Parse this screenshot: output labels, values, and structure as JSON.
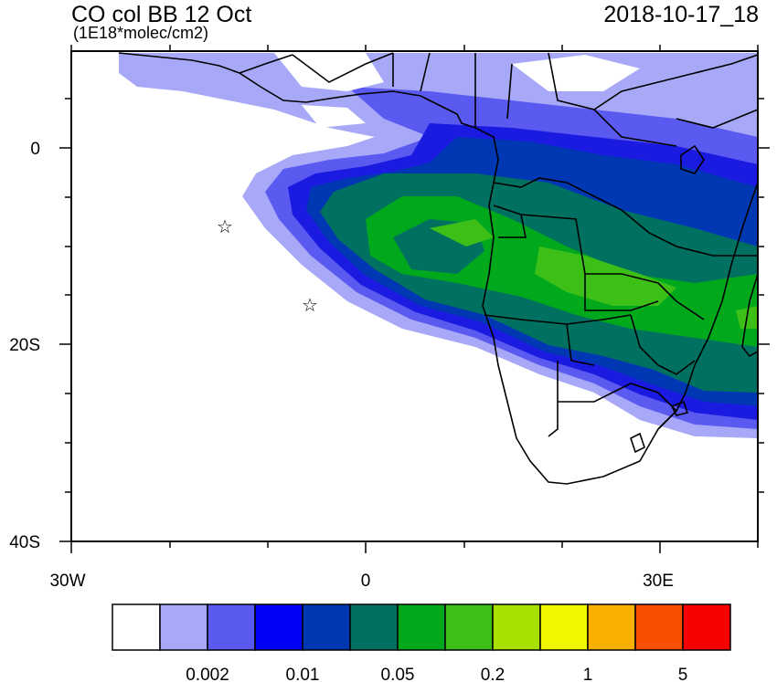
{
  "header": {
    "title": "CO col BB 12 Oct",
    "units": "(1E18*molec/cm2)",
    "timestamp": "2018-10-17_18"
  },
  "axes": {
    "lat_labels": [
      "0",
      "20S",
      "40S"
    ],
    "lon_labels": [
      "30W",
      "0",
      "30E"
    ]
  },
  "colorbar": {
    "colors": [
      "#ffffff",
      "#a8a8f8",
      "#5a5af0",
      "#0000f8",
      "#0038b4",
      "#007060",
      "#00a81c",
      "#3cc018",
      "#a8e000",
      "#f0f800",
      "#f8b000",
      "#f85000",
      "#f80000"
    ],
    "labels": [
      "0.002",
      "0.01",
      "0.05",
      "0.2",
      "1",
      "5"
    ]
  },
  "markers": {
    "symbol": "☆",
    "count": 2
  }
}
